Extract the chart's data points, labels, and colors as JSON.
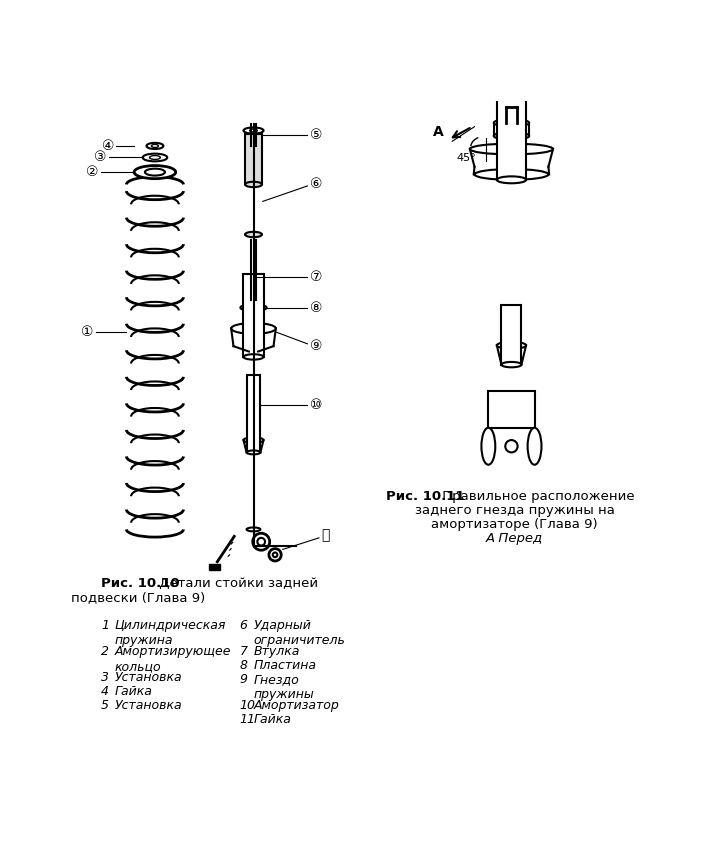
{
  "bg_color": "#ffffff",
  "fig_title_10_bold": "Рис. 10.10",
  "fig_title_10_rest": " Детали стойки задней",
  "fig_title_10_line2": "подвески (Глава 9)",
  "fig_title_11_bold": "Рис. 10.11",
  "fig_title_11_rest": " Правильное расположение",
  "fig_title_11_line2": "заднего гнезда пружины на",
  "fig_title_11_line3": "амортизаторе (Глава 9)",
  "fig_title_11_italic": "А Перед",
  "label_A": "А",
  "label_45": "45°",
  "legend_left": [
    [
      "1",
      "Цилиндрическая\nпружина"
    ],
    [
      "2",
      "Амортизирующее\nкольцо"
    ],
    [
      "3",
      "Установка"
    ],
    [
      "4",
      "Гайка"
    ],
    [
      "5",
      "Установка"
    ]
  ],
  "legend_right": [
    [
      "6",
      "Ударный\nограничитель"
    ],
    [
      "7",
      "Втулка"
    ],
    [
      "8",
      "Пластина"
    ],
    [
      "9",
      "Гнездо\nпружины"
    ],
    [
      "10",
      "Амортизатор"
    ],
    [
      "11",
      "Гайка"
    ]
  ],
  "circled": [
    "①",
    "②",
    "③",
    "④",
    "⑤",
    "⑥",
    "⑦",
    "⑧",
    "⑨",
    "⑩",
    "⑪"
  ]
}
